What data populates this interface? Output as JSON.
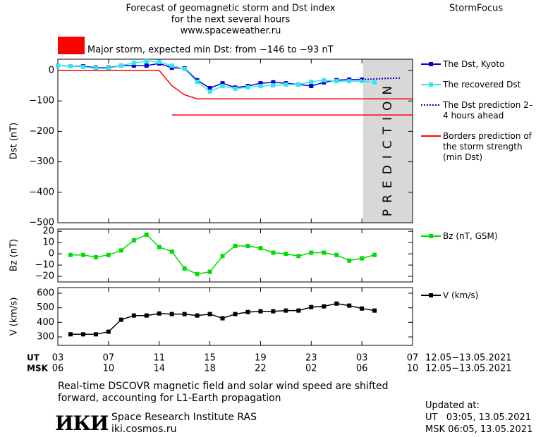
{
  "header": {
    "lines": [
      "Forecast of geomagnetic storm and Dst index",
      "for the next several hours",
      "www.spaceweather.ru"
    ],
    "brand": "StormFocus"
  },
  "chart_data": [
    {
      "type": "line",
      "ylabel": "Dst (nT)",
      "xlim": [
        0,
        28
      ],
      "xticks": [
        0,
        4,
        8,
        12,
        16,
        20,
        24,
        28
      ],
      "ylim": [
        -500,
        37
      ],
      "yticks": [
        0,
        {
          "value": -100,
          "label": "−100"
        },
        {
          "value": -200,
          "label": "−200"
        },
        {
          "value": -300,
          "label": "−300"
        },
        {
          "value": -400,
          "label": "−400"
        },
        {
          "value": -500,
          "label": "−500"
        }
      ],
      "annotation": {
        "text": "Major storm, expected min Dst: from −146 to −93 nT",
        "color": "#ff0000"
      },
      "prediction_span": [
        24.1,
        28
      ],
      "prediction_label": "PREDICTION",
      "series": [
        {
          "name": "The Dst, Kyoto",
          "color": "#0000cc",
          "marker": "square",
          "style": "solid",
          "x": [
            0,
            1,
            2,
            3,
            4,
            5,
            6,
            7,
            8,
            9,
            10,
            11,
            12,
            13,
            14,
            15,
            16,
            17,
            18,
            19,
            20,
            21,
            22,
            23,
            24
          ],
          "values": [
            16,
            14,
            14,
            9,
            9,
            16,
            16,
            16,
            23,
            9,
            7,
            -32,
            -58,
            -42,
            -56,
            -51,
            -42,
            -39,
            -42,
            -46,
            -51,
            -39,
            -32,
            -30,
            -30
          ]
        },
        {
          "name": "The recovered Dst",
          "color": "#33e6f0",
          "marker": "square",
          "style": "solid",
          "x": [
            0,
            1,
            2,
            3,
            4,
            5,
            6,
            7,
            8,
            9,
            10,
            11,
            12,
            13,
            14,
            15,
            16,
            17,
            18,
            19,
            20,
            21,
            22,
            23,
            24,
            25
          ],
          "values": [
            16,
            14,
            12,
            7,
            7,
            16,
            25,
            30,
            28,
            16,
            5,
            -37,
            -69,
            -51,
            -60,
            -55,
            -51,
            -49,
            -46,
            -46,
            -37,
            -32,
            -35,
            -35,
            -35,
            -39
          ]
        },
        {
          "name": "The Dst prediction 2–4 hours ahead",
          "color": "#0000cc",
          "marker": "none",
          "style": "dotted",
          "x": [
            24,
            25,
            26,
            27
          ],
          "values": [
            -30,
            -28,
            -26,
            -25
          ]
        },
        {
          "name": "Borders prediction of the storm strength (min Dst)",
          "color": "#ff0000",
          "marker": "none",
          "style": "solid",
          "x": [
            0,
            8,
            9,
            10,
            11,
            28
          ],
          "values": [
            0,
            0,
            -50,
            -80,
            -93,
            -93
          ]
        },
        {
          "color": "#ff0000",
          "marker": "none",
          "style": "solid",
          "x": [
            9,
            28
          ],
          "values": [
            -146,
            -146
          ]
        }
      ]
    },
    {
      "type": "line",
      "ylabel": "Bz (nT)",
      "xlim": [
        0,
        28
      ],
      "xticks": [
        0,
        4,
        8,
        12,
        16,
        20,
        24,
        28
      ],
      "ylim": [
        -25,
        22
      ],
      "yticks": [
        20,
        10,
        0,
        {
          "value": -10,
          "label": "−10"
        },
        {
          "value": -20,
          "label": "−20"
        }
      ],
      "series": [
        {
          "name": "Bz (nT, GSM)",
          "color": "#00dd00",
          "marker": "square",
          "style": "solid",
          "x": [
            1,
            2,
            3,
            4,
            5,
            6,
            7,
            8,
            9,
            10,
            11,
            12,
            13,
            14,
            15,
            16,
            17,
            18,
            19,
            20,
            21,
            22,
            23,
            24,
            25
          ],
          "values": [
            -1,
            -1,
            -3,
            -1,
            3,
            12,
            17,
            6,
            2,
            -13,
            -18,
            -16,
            -2,
            7,
            7,
            5,
            1,
            0,
            -2,
            1,
            1,
            -1,
            -6,
            -4,
            -1
          ]
        }
      ]
    },
    {
      "type": "line",
      "ylabel": "V (km/s)",
      "xlim": [
        0,
        28
      ],
      "xticks": [
        {
          "value": 0,
          "label": "03"
        },
        {
          "value": 4,
          "label": "07"
        },
        {
          "value": 8,
          "label": "11"
        },
        {
          "value": 12,
          "label": "15"
        },
        {
          "value": 16,
          "label": "19"
        },
        {
          "value": 20,
          "label": "23"
        },
        {
          "value": 24,
          "label": "03"
        },
        {
          "value": 28,
          "label": "07"
        }
      ],
      "xticks_msk": [
        {
          "value": 0,
          "label": "06"
        },
        {
          "value": 4,
          "label": "10"
        },
        {
          "value": 8,
          "label": "14"
        },
        {
          "value": 12,
          "label": "18"
        },
        {
          "value": 16,
          "label": "22"
        },
        {
          "value": 20,
          "label": "02"
        },
        {
          "value": 24,
          "label": "06"
        },
        {
          "value": 28,
          "label": "10"
        }
      ],
      "x_rows": [
        "UT",
        "MSK"
      ],
      "x_dates": [
        "12.05−13.05.2021",
        "12.05−13.05.2021"
      ],
      "ylim": [
        242,
        639
      ],
      "yticks": [
        600,
        500,
        400,
        300
      ],
      "series": [
        {
          "name": "V (km/s)",
          "color": "#000000",
          "marker": "square",
          "style": "solid",
          "x": [
            1,
            2,
            3,
            4,
            5,
            6,
            7,
            8,
            9,
            10,
            11,
            12,
            13,
            14,
            15,
            16,
            17,
            18,
            19,
            20,
            21,
            22,
            23,
            24,
            25
          ],
          "values": [
            318,
            318,
            318,
            336,
            418,
            447,
            447,
            461,
            457,
            457,
            447,
            457,
            428,
            457,
            471,
            476,
            476,
            481,
            481,
            505,
            510,
            529,
            515,
            495,
            481
          ]
        }
      ]
    }
  ],
  "footer": {
    "notes": [
      "Real-time DSCOVR magnetic field and solar wind speed are shifted",
      "forward, accounting for L1-Earth propagation"
    ],
    "logo": "ИКИ",
    "institute": [
      "Space Research Institute RAS",
      "iki.cosmos.ru"
    ],
    "updated": [
      "Updated at:",
      "UT   03:05, 13.05.2021",
      "MSK 06:05, 13.05.2021"
    ]
  }
}
